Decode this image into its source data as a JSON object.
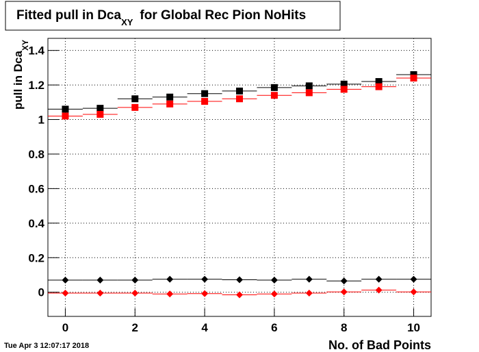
{
  "chart_data": {
    "type": "scatter",
    "title": {
      "main": "Fitted pull in Dca",
      "subscript": "XY",
      "rest": "for Global Rec Pion NoHits"
    },
    "ylabel": {
      "main": "pull in Dca",
      "subscript": "XY"
    },
    "xlabel": "No. of Bad Points",
    "timestamp": "Tue Apr  3 12:07:17 2018",
    "x": [
      0,
      1,
      2,
      3,
      4,
      5,
      6,
      7,
      8,
      9,
      10
    ],
    "series": [
      {
        "color": "#000000",
        "marker": "square",
        "values": [
          1.06,
          1.065,
          1.12,
          1.13,
          1.15,
          1.165,
          1.185,
          1.195,
          1.205,
          1.22,
          1.26
        ]
      },
      {
        "color": "#ff0000",
        "marker": "square",
        "values": [
          1.02,
          1.03,
          1.07,
          1.09,
          1.105,
          1.12,
          1.14,
          1.155,
          1.175,
          1.19,
          1.24
        ]
      },
      {
        "color": "#000000",
        "marker": "diamond",
        "values": [
          0.07,
          0.07,
          0.07,
          0.075,
          0.075,
          0.072,
          0.07,
          0.075,
          0.065,
          0.075,
          0.075
        ]
      },
      {
        "color": "#ff0000",
        "marker": "diamond",
        "values": [
          -0.005,
          -0.005,
          -0.005,
          -0.01,
          -0.008,
          -0.015,
          -0.01,
          -0.005,
          0.002,
          0.012,
          0.002
        ]
      }
    ],
    "xlim": [
      -0.5,
      10.5
    ],
    "ylim": [
      -0.14,
      1.47
    ],
    "xticks": [
      0,
      2,
      4,
      6,
      8,
      10
    ],
    "yticks": [
      0,
      0.2,
      0.4,
      0.6,
      0.8,
      1,
      1.2,
      1.4
    ],
    "grid": true
  }
}
